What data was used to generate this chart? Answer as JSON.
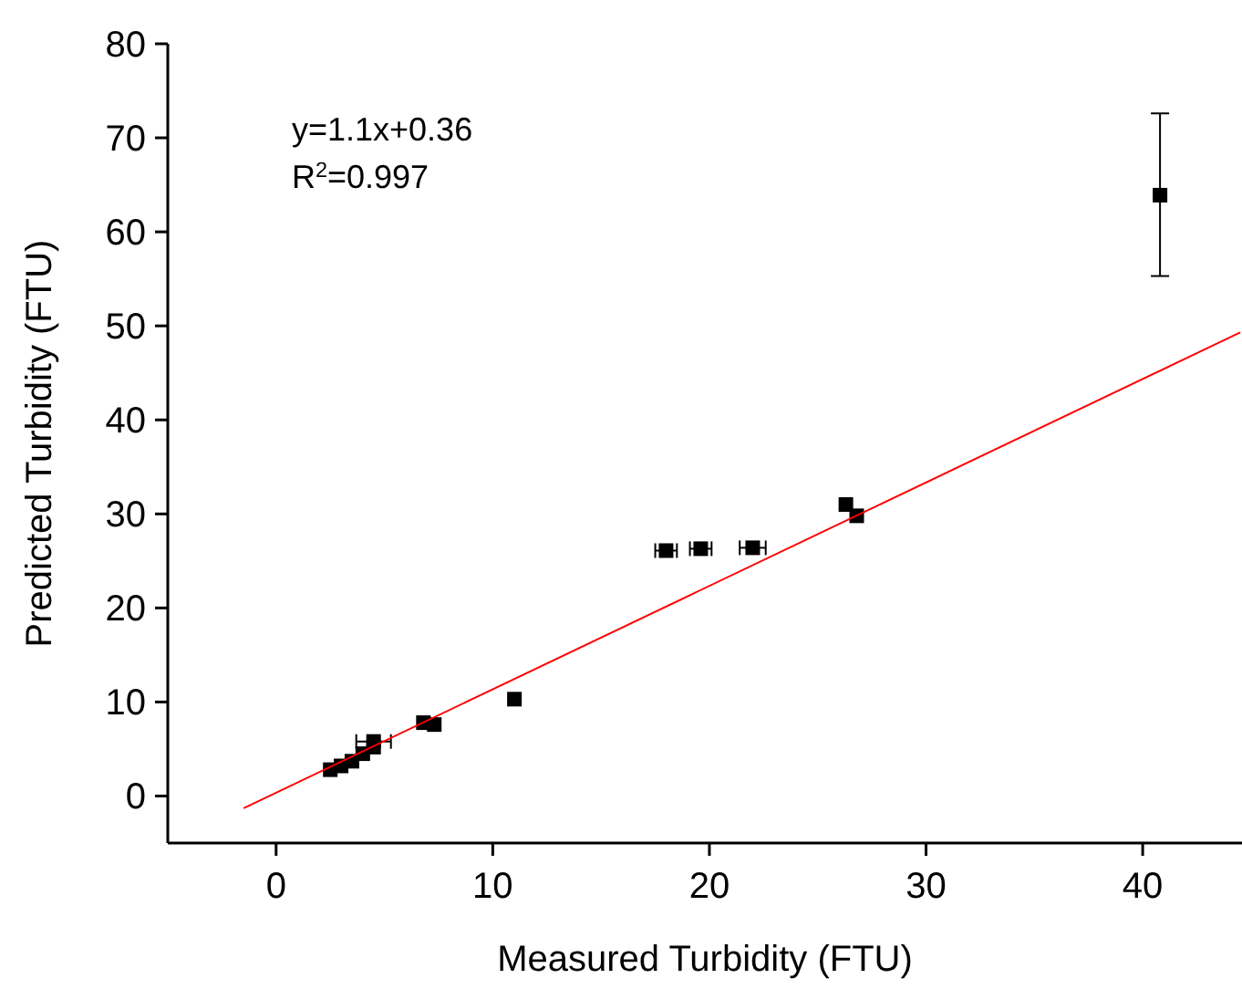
{
  "chart_data": {
    "type": "scatter",
    "xlabel": "Measured Turbidity (FTU)",
    "ylabel": "Predicted Turbidity (FTU)",
    "annotations": [
      "y=1.1x+0.36",
      "R$^{2}$=0.997"
    ],
    "xlim": [
      -5,
      44.5
    ],
    "ylim": [
      -5,
      80
    ],
    "xticks": [
      0,
      10,
      20,
      30,
      40
    ],
    "yticks": [
      0,
      10,
      20,
      30,
      40,
      50,
      60,
      70,
      80
    ],
    "grid": false,
    "series": [
      {
        "marker": "square",
        "color": "#000000",
        "x": [
          2.5,
          3.0,
          3.5,
          4.0,
          4.5,
          4.5,
          6.8,
          7.3,
          11.0,
          18.0,
          19.6,
          22.0,
          26.3,
          26.8,
          40.8
        ],
        "values": [
          2.8,
          3.2,
          3.7,
          4.5,
          5.2,
          5.8,
          7.8,
          7.6,
          10.3,
          26.1,
          26.3,
          26.4,
          31.0,
          29.8,
          63.9
        ],
        "errors": [
          null,
          null,
          null,
          null,
          null,
          null,
          null,
          null,
          null,
          null,
          null,
          null,
          null,
          null,
          [
            55.3,
            72.6
          ]
        ],
        "xerrors": [
          null,
          null,
          null,
          null,
          null,
          0.8,
          null,
          null,
          null,
          0.5,
          0.5,
          0.6,
          null,
          null,
          null
        ]
      },
      {
        "type": "line",
        "color": "#ff0000",
        "x": [
          -1.5,
          44.5
        ],
        "values": [
          -1.3,
          49.3
        ]
      }
    ]
  }
}
